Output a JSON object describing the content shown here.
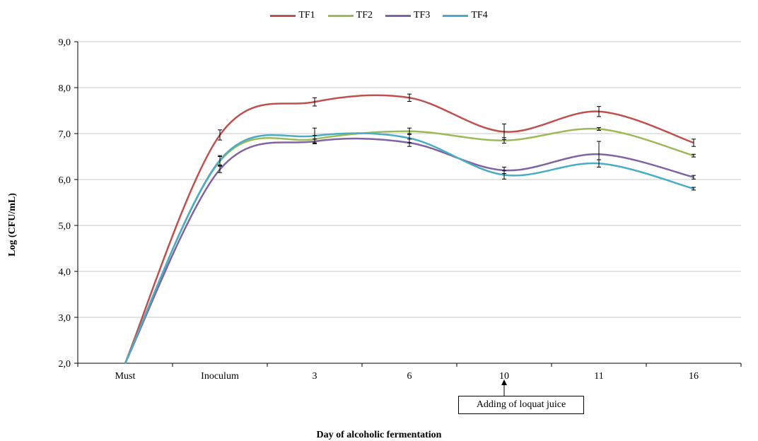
{
  "chart_data": {
    "type": "line",
    "title": "",
    "xlabel": "Day of alcoholic fermentation",
    "ylabel": "Log (CFU/mL)",
    "categories": [
      "Must",
      "Inoculum",
      "3",
      "6",
      "10",
      "11",
      "16"
    ],
    "yticks": [
      "2,0",
      "3,0",
      "4,0",
      "5,0",
      "6,0",
      "7,0",
      "8,0",
      "9,0"
    ],
    "ylim": [
      2,
      9
    ],
    "grid": true,
    "legend": "top-center",
    "series": [
      {
        "name": "TF1",
        "color": "#c0504d",
        "values": [
          2.0,
          6.97,
          7.69,
          7.78,
          7.04,
          7.48,
          6.8
        ],
        "errors": [
          0,
          0.11,
          0.09,
          0.08,
          0.17,
          0.11,
          0.08
        ]
      },
      {
        "name": "TF2",
        "color": "#9bbb59",
        "values": [
          2.0,
          6.4,
          6.88,
          7.05,
          6.85,
          7.1,
          6.52
        ],
        "errors": [
          0,
          0.1,
          0.08,
          0.07,
          0.06,
          0.03,
          0.03
        ]
      },
      {
        "name": "TF3",
        "color": "#8064a2",
        "values": [
          2.0,
          6.22,
          6.83,
          6.8,
          6.2,
          6.55,
          6.05
        ],
        "errors": [
          0,
          0.07,
          0.05,
          0.08,
          0.07,
          0.28,
          0.04
        ]
      },
      {
        "name": "TF4",
        "color": "#4bacc6",
        "values": [
          2.0,
          6.42,
          6.95,
          6.9,
          6.1,
          6.35,
          5.8
        ],
        "errors": [
          0,
          0.1,
          0.17,
          0.1,
          0.09,
          0.08,
          0.03
        ]
      }
    ],
    "annotation": {
      "text": "Adding of loquat juice",
      "category": "10"
    }
  }
}
